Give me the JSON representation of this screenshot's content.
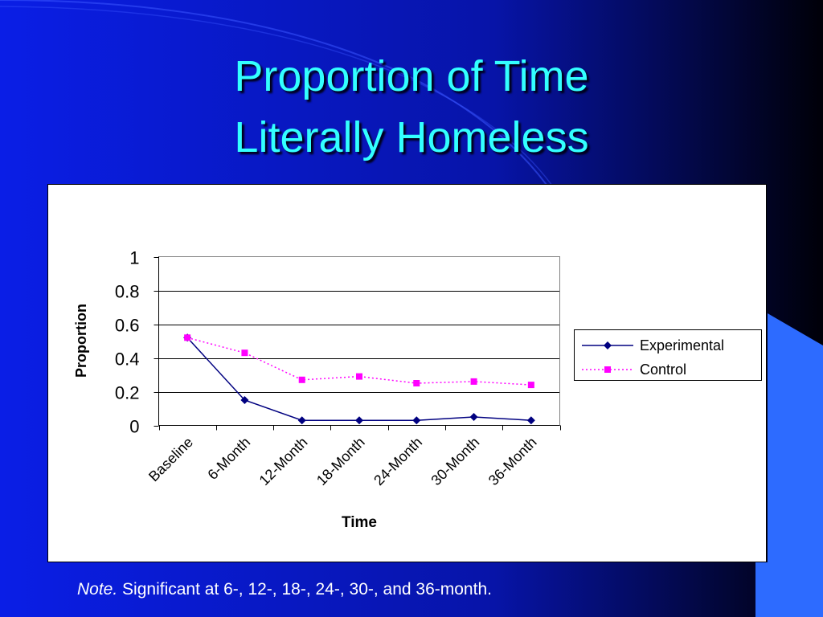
{
  "slide": {
    "title_line1": "Proportion of Time",
    "title_line2": "Literally Homeless",
    "footnote_label": "Note.",
    "footnote_text": " Significant at 6-, 12-, 18-, 24-, 30-, and 36-month.",
    "colors": {
      "background_dark": "#000000",
      "background_blue": "#0a1ee6",
      "accent_blue": "#2d6bff",
      "title_color": "#33ffff",
      "text_white": "#ffffff"
    }
  },
  "chart_data": {
    "type": "line",
    "categories": [
      "Baseline",
      "6-Month",
      "12-Month",
      "18-Month",
      "24-Month",
      "30-Month",
      "36-Month"
    ],
    "series": [
      {
        "name": "Experimental",
        "values": [
          0.52,
          0.15,
          0.03,
          0.03,
          0.03,
          0.05,
          0.03
        ],
        "color": "#000080",
        "marker": "diamond",
        "line_style": "solid"
      },
      {
        "name": "Control",
        "values": [
          0.52,
          0.43,
          0.27,
          0.29,
          0.25,
          0.26,
          0.24
        ],
        "color": "#ff00ff",
        "marker": "square",
        "line_style": "dotted"
      }
    ],
    "xlabel": "Time",
    "ylabel": "Proportion",
    "ylim": [
      0,
      1
    ],
    "yticks": [
      "0",
      "0.2",
      "0.4",
      "0.6",
      "0.8",
      "1"
    ],
    "grid": true,
    "legend": "right"
  }
}
